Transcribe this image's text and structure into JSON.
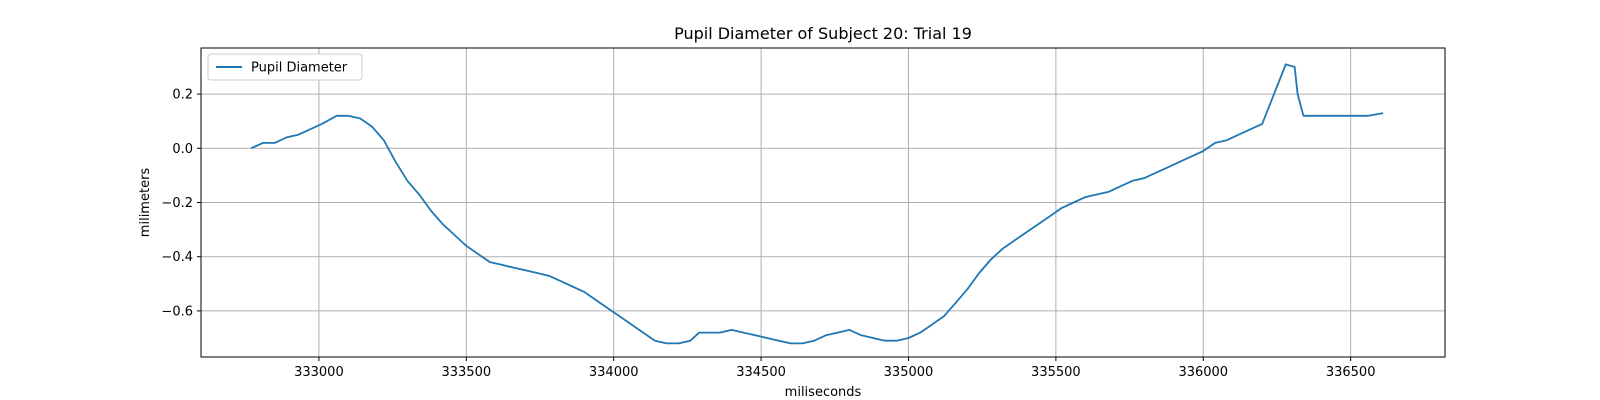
{
  "chart_data": {
    "type": "line",
    "title": "Pupil Diameter of Subject 20: Trial 19",
    "xlabel": "miliseconds",
    "ylabel": "milimeters",
    "xlim": [
      332600,
      336820
    ],
    "ylim": [
      -0.77,
      0.37
    ],
    "xticks": [
      333000,
      333500,
      334000,
      334500,
      335000,
      335500,
      336000,
      336500
    ],
    "yticks": [
      0.2,
      0.0,
      -0.2,
      -0.4,
      -0.6
    ],
    "ytick_labels": [
      "0.2",
      "0.0",
      "−0.2",
      "−0.4",
      "−0.6"
    ],
    "grid": true,
    "legend": {
      "position": "top-left"
    },
    "colors": {
      "line": "#1f77b4",
      "grid": "#b0b0b0"
    },
    "series": [
      {
        "name": "Pupil Diameter",
        "x": [
          332770,
          332810,
          332850,
          332890,
          332930,
          332970,
          333010,
          333060,
          333100,
          333140,
          333180,
          333220,
          333260,
          333300,
          333340,
          333380,
          333420,
          333460,
          333500,
          333540,
          333580,
          333620,
          333660,
          333700,
          333740,
          333780,
          333820,
          333860,
          333900,
          333940,
          333980,
          334020,
          334060,
          334100,
          334140,
          334180,
          334220,
          334260,
          334290,
          334320,
          334360,
          334400,
          334440,
          334480,
          334520,
          334560,
          334600,
          334640,
          334680,
          334720,
          334760,
          334800,
          334840,
          334880,
          334920,
          334960,
          335000,
          335040,
          335080,
          335120,
          335160,
          335200,
          335240,
          335280,
          335320,
          335360,
          335400,
          335440,
          335480,
          335520,
          335560,
          335600,
          335640,
          335680,
          335720,
          335760,
          335800,
          335840,
          335880,
          335920,
          335960,
          336000,
          336040,
          336080,
          336120,
          336160,
          336200,
          336240,
          336280,
          336310,
          336320,
          336340,
          336360,
          336400,
          336440,
          336480,
          336520,
          336560,
          336610
        ],
        "y": [
          0.0,
          0.02,
          0.02,
          0.04,
          0.05,
          0.07,
          0.09,
          0.12,
          0.12,
          0.11,
          0.08,
          0.03,
          -0.05,
          -0.12,
          -0.17,
          -0.23,
          -0.28,
          -0.32,
          -0.36,
          -0.39,
          -0.42,
          -0.43,
          -0.44,
          -0.45,
          -0.46,
          -0.47,
          -0.49,
          -0.51,
          -0.53,
          -0.56,
          -0.59,
          -0.62,
          -0.65,
          -0.68,
          -0.71,
          -0.72,
          -0.72,
          -0.71,
          -0.68,
          -0.68,
          -0.68,
          -0.67,
          -0.68,
          -0.69,
          -0.7,
          -0.71,
          -0.72,
          -0.72,
          -0.71,
          -0.69,
          -0.68,
          -0.67,
          -0.69,
          -0.7,
          -0.71,
          -0.71,
          -0.7,
          -0.68,
          -0.65,
          -0.62,
          -0.57,
          -0.52,
          -0.46,
          -0.41,
          -0.37,
          -0.34,
          -0.31,
          -0.28,
          -0.25,
          -0.22,
          -0.2,
          -0.18,
          -0.17,
          -0.16,
          -0.14,
          -0.12,
          -0.11,
          -0.09,
          -0.07,
          -0.05,
          -0.03,
          -0.01,
          0.02,
          0.03,
          0.05,
          0.07,
          0.09,
          0.2,
          0.31,
          0.3,
          0.2,
          0.12,
          0.12,
          0.12,
          0.12,
          0.12,
          0.12,
          0.12,
          0.13
        ]
      }
    ]
  }
}
